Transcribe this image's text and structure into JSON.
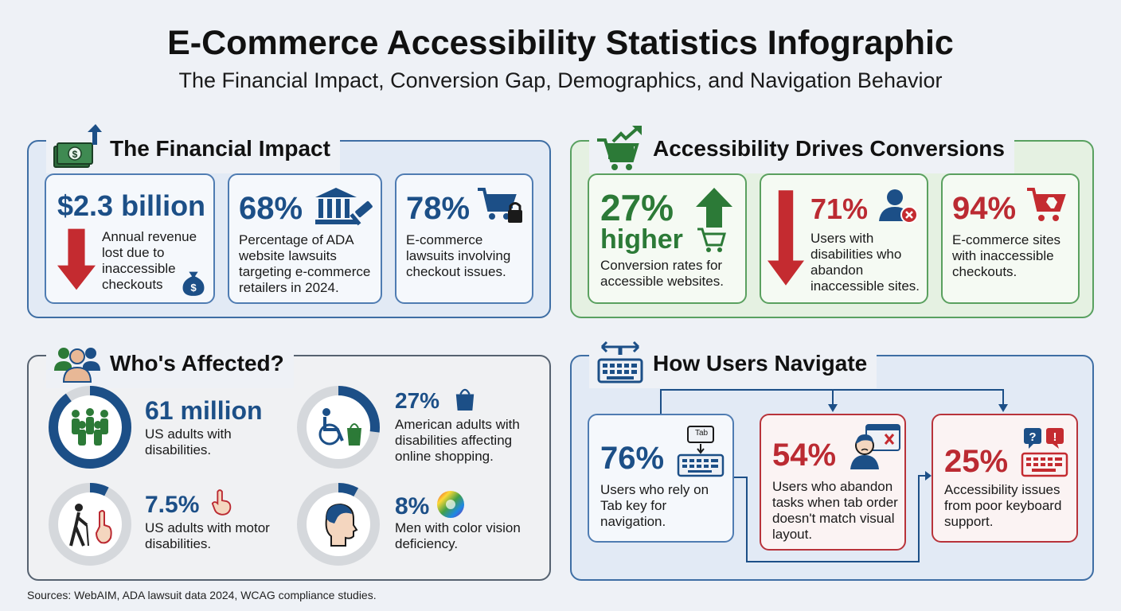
{
  "title": "E-Commerce Accessibility Statistics Infographic",
  "subtitle": "The Financial Impact, Conversion Gap, Demographics, and Navigation Behavior",
  "financial": {
    "heading": "The Financial Impact",
    "cards": [
      {
        "value": "$2.3 billion",
        "text": "Annual revenue lost due to inaccessible checkouts"
      },
      {
        "value": "68%",
        "text": "Percentage of ADA website lawsuits targeting e-commerce retailers in 2024."
      },
      {
        "value": "78%",
        "text": "E-commerce lawsuits involving checkout issues."
      }
    ]
  },
  "conversions": {
    "heading": "Accessibility Drives Conversions",
    "cards": [
      {
        "value": "27%",
        "value2": "higher",
        "text": "Conversion rates for accessible websites."
      },
      {
        "value": "71%",
        "text": "Users with disabilities who abandon inaccessible sites."
      },
      {
        "value": "94%",
        "text": "E-commerce sites with inaccessible checkouts."
      }
    ]
  },
  "affected": {
    "heading": "Who's Affected?",
    "items": [
      {
        "value": "61 million",
        "text": "US adults with disabilities.",
        "fraction": 0.9
      },
      {
        "value": "27%",
        "text": "American adults with disabilities affecting online shopping.",
        "fraction": 0.27
      },
      {
        "value": "7.5%",
        "text": "US adults with motor disabilities.",
        "fraction": 0.075
      },
      {
        "value": "8%",
        "text": "Men with color vision deficiency.",
        "fraction": 0.08
      }
    ]
  },
  "navigate": {
    "heading": "How Users Navigate",
    "tab_key_label": "Tab",
    "cards": [
      {
        "value": "76%",
        "text": "Users who rely on Tab key for navigation."
      },
      {
        "value": "54%",
        "text": "Users who abandon tasks when tab order doesn't match visual layout."
      },
      {
        "value": "25%",
        "text": "Accessibility issues from poor keyboard support."
      }
    ]
  },
  "footer": "Sources: WebAIM, ADA lawsuit data 2024, WCAG compliance studies.",
  "colors": {
    "blue": "#1c4f87",
    "green": "#2c7a37",
    "red": "#bb2a32",
    "ring_track": "#d5d8dc"
  },
  "icons": [
    "money-up-icon",
    "cart-trend-icon",
    "people-group-icon",
    "keyboard-arrows-icon",
    "down-arrow-icon",
    "money-bag-icon",
    "courthouse-gavel-icon",
    "cart-lock-icon",
    "up-arrow-icon",
    "cart-icon",
    "user-error-icon",
    "broken-cart-icon",
    "crowd-icon",
    "wheelchair-bag-icon",
    "walking-cane-icon",
    "pointing-hand-icon",
    "profile-head-icon",
    "color-wheel-icon",
    "shopping-bag-icon",
    "tab-keyboard-icon",
    "frustrated-user-icon",
    "question-alert-keyboard-icon"
  ]
}
